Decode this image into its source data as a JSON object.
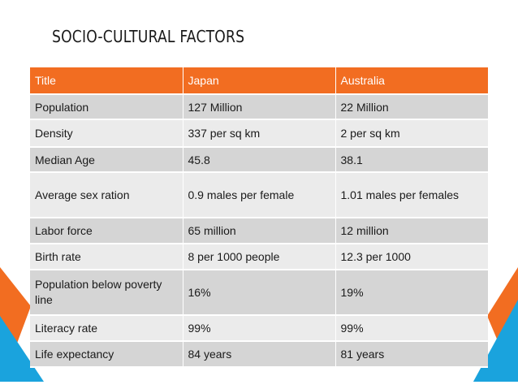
{
  "slide": {
    "title": "SOCIO-CULTURAL FACTORS"
  },
  "colors": {
    "header_orange": "#f26d21",
    "accent_blue": "#1aa3dd",
    "row_dark": "#d5d5d5",
    "row_light": "#ebebeb"
  },
  "table": {
    "headers": [
      "Title",
      "Japan",
      "Australia"
    ],
    "rows": [
      [
        "Population",
        "127 Million",
        "22 Million"
      ],
      [
        "Density",
        "337 per sq km",
        "2 per sq km"
      ],
      [
        "Median Age",
        "45.8",
        "38.1"
      ],
      [
        "Average sex ration",
        "0.9 males per female",
        "1.01 males per females"
      ],
      [
        "Labor force",
        "65 million",
        "12 million"
      ],
      [
        "Birth rate",
        "8 per 1000 people",
        "12.3 per 1000"
      ],
      [
        "Population below poverty line",
        "16%",
        "19%"
      ],
      [
        "Literacy rate",
        "99%",
        "99%"
      ],
      [
        "Life expectancy",
        "84 years",
        "81 years"
      ]
    ]
  }
}
